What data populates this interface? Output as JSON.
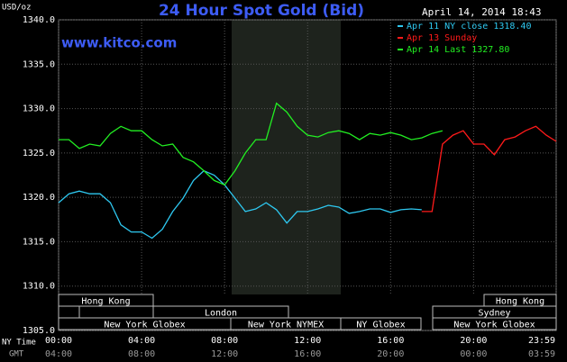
{
  "chart_data": {
    "type": "line",
    "title": "24 Hour Spot Gold (Bid)",
    "date": "April 14, 2014 18:43",
    "watermark": "www.kitco.com",
    "y_label": "USD/oz",
    "x_label": "NY Time",
    "x2_label": "GMT",
    "x": [
      0,
      0.5,
      1,
      1.5,
      2,
      2.5,
      3,
      3.5,
      4,
      4.5,
      5,
      5.5,
      6,
      6.5,
      7,
      7.5,
      8,
      8.5,
      9,
      9.5,
      10,
      10.5,
      11,
      11.5,
      12,
      12.5,
      13,
      13.5,
      14,
      14.5,
      15,
      15.5,
      16,
      16.5,
      17,
      17.5,
      18,
      18.5,
      19,
      19.5,
      20,
      20.5,
      21,
      21.5,
      22,
      22.5,
      23,
      23.5,
      23.98
    ],
    "series": [
      {
        "name": "Apr 11 NY close 1318.40",
        "color": "#2ec8f0",
        "values": [
          1319.4,
          1320.4,
          1320.7,
          1320.4,
          1320.4,
          1319.4,
          1316.9,
          1316.1,
          1316.1,
          1315.4,
          1316.4,
          1318.4,
          1319.9,
          1321.9,
          1323.0,
          1322.5,
          1321.4,
          1319.9,
          1318.4,
          1318.7,
          1319.4,
          1318.6,
          1317.1,
          1318.4,
          1318.4,
          1318.7,
          1319.1,
          1318.9,
          1318.2,
          1318.4,
          1318.7,
          1318.7,
          1318.3,
          1318.6,
          1318.7,
          1318.6,
          null,
          null,
          null,
          null,
          null,
          null,
          null,
          null,
          null,
          null,
          null,
          null,
          null
        ]
      },
      {
        "name": "Apr 13 Sunday",
        "color": "#ff1a1a",
        "values": [
          null,
          null,
          null,
          null,
          null,
          null,
          null,
          null,
          null,
          null,
          null,
          null,
          null,
          null,
          null,
          null,
          null,
          null,
          null,
          null,
          null,
          null,
          null,
          null,
          null,
          null,
          null,
          null,
          null,
          null,
          null,
          null,
          null,
          null,
          null,
          1318.4,
          1318.4,
          1326.0,
          1327.0,
          1327.5,
          1326.0,
          1326.0,
          1324.8,
          1326.5,
          1326.8,
          1327.5,
          1328.0,
          1327.0,
          1326.3
        ]
      },
      {
        "name": "Apr 14 Last 1327.80",
        "color": "#22ee22",
        "values": [
          1326.5,
          1326.5,
          1325.5,
          1326.0,
          1325.8,
          1327.2,
          1328.0,
          1327.5,
          1327.5,
          1326.5,
          1325.8,
          1326.0,
          1324.5,
          1324.0,
          1323.0,
          1321.9,
          1321.4,
          1323.0,
          1325.0,
          1326.5,
          1326.5,
          1330.6,
          1329.6,
          1328.0,
          1327.0,
          1326.8,
          1327.3,
          1327.5,
          1327.2,
          1326.5,
          1327.2,
          1327.0,
          1327.3,
          1327.0,
          1326.5,
          1326.7,
          1327.2,
          1327.5,
          null,
          null,
          null,
          null,
          null,
          null,
          null,
          null,
          null,
          null,
          null
        ]
      }
    ],
    "xlim": [
      0,
      23.98
    ],
    "ylim": [
      1305,
      1340
    ],
    "xticks": [
      {
        "value": 0,
        "label": "00:00"
      },
      {
        "value": 4,
        "label": "04:00"
      },
      {
        "value": 8,
        "label": "08:00"
      },
      {
        "value": 12,
        "label": "12:00"
      },
      {
        "value": 16,
        "label": "16:00"
      },
      {
        "value": 20,
        "label": "20:00"
      },
      {
        "value": 23.98,
        "label": "23:59"
      }
    ],
    "x2ticks": [
      {
        "value": 0,
        "label": "04:00"
      },
      {
        "value": 4,
        "label": "08:00"
      },
      {
        "value": 8,
        "label": "12:00"
      },
      {
        "value": 12,
        "label": "16:00"
      },
      {
        "value": 16,
        "label": "20:00"
      },
      {
        "value": 20,
        "label": "00:00"
      },
      {
        "value": 23.98,
        "label": "03:59"
      }
    ],
    "yticks": [
      {
        "value": 1305,
        "label": "1305.0"
      },
      {
        "value": 1310,
        "label": "1310.0"
      },
      {
        "value": 1315,
        "label": "1315.0"
      },
      {
        "value": 1320,
        "label": "1320.0"
      },
      {
        "value": 1325,
        "label": "1325.0"
      },
      {
        "value": 1330,
        "label": "1330.0"
      },
      {
        "value": 1335,
        "label": "1335.0"
      },
      {
        "value": 1340,
        "label": "1340.0"
      }
    ],
    "grid": true
  },
  "sessions": [
    "Hong Kong",
    "Hong Kong",
    "London",
    "Sydney",
    "New York Globex",
    "New York NYMEX",
    "NY Globex",
    "New York Globex"
  ]
}
